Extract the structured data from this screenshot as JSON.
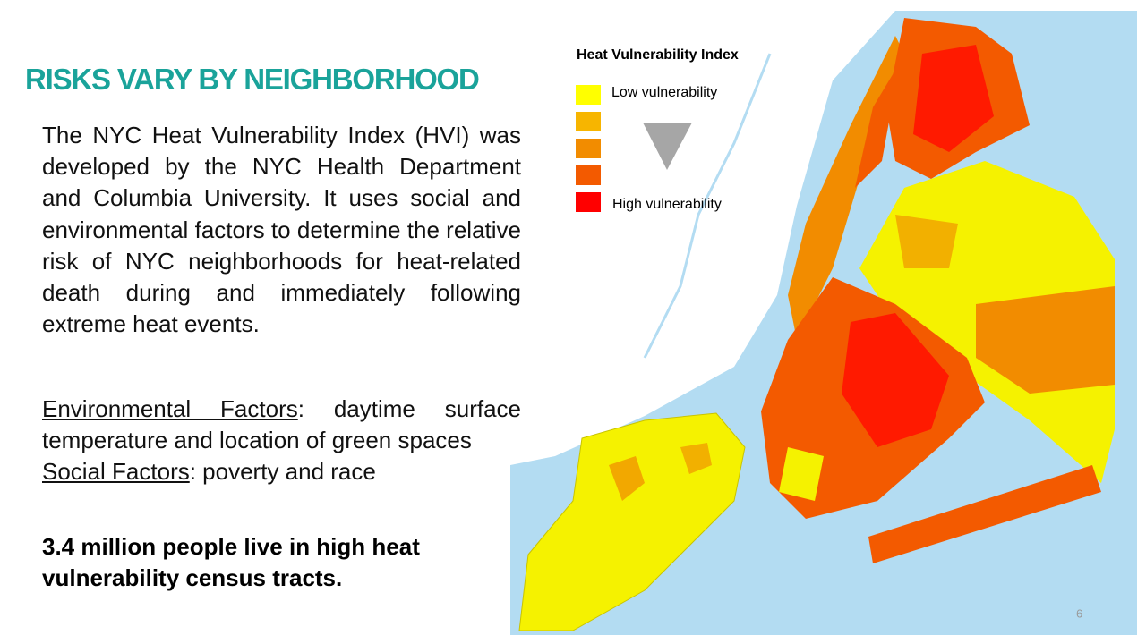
{
  "slide": {
    "title": "RISKS VARY BY NEIGHBORHOOD",
    "paragraph": "The NYC Heat Vulnerability Index (HVI) was developed by the NYC Health Department and Columbia University. It uses social and environmental factors to determine the relative risk of NYC neighborhoods for heat-related death during and immediately following extreme heat events.",
    "factors": [
      {
        "label": "Environmental Factors",
        "text": ": daytime surface temperature and location of green spaces"
      },
      {
        "label": "Social Factors",
        "text": ": poverty and race"
      }
    ],
    "highlight": "3.4 million people live in high heat vulnerability census tracts.",
    "page_number": "6"
  },
  "map": {
    "legend": {
      "title": "Heat Vulnerability Index",
      "low_label": "Low vulnerability",
      "high_label": "High vulnerability",
      "colors": [
        "#ffff00",
        "#f7b500",
        "#f28c00",
        "#f35a00",
        "#ff0000"
      ]
    }
  }
}
